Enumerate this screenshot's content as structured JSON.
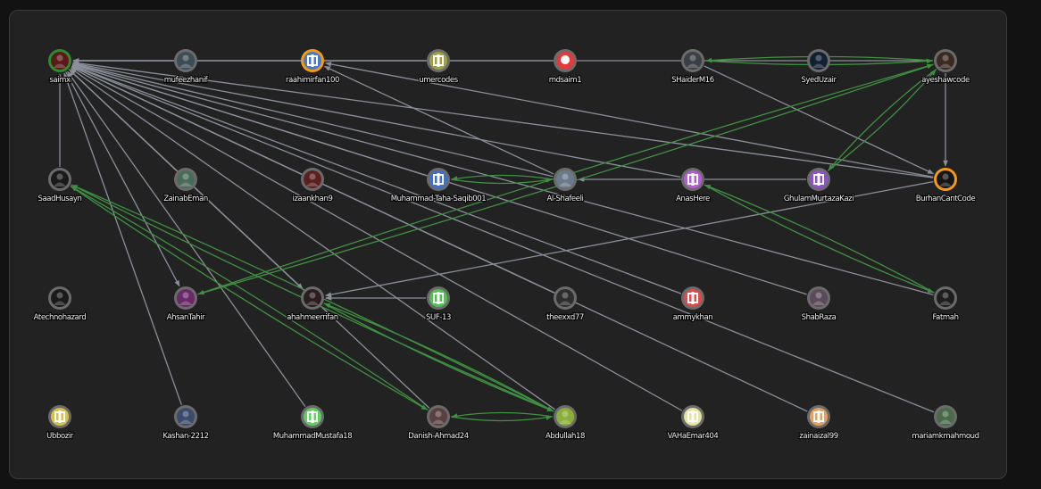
{
  "graph": {
    "colors": {
      "background": "#222222",
      "edge_default": "#8a8f9a",
      "edge_mutual": "#3f9142",
      "ring_default": "#6b6b6b",
      "ring_green": "#2e8b2e",
      "ring_orange": "#f39c12"
    },
    "nodes": [
      {
        "id": "saimx",
        "label": "saimx",
        "ring": "green",
        "icon": "avatar-photo-icon",
        "fill": "#5a1a1a"
      },
      {
        "id": "mufeezhanif",
        "label": "mufeezhanif",
        "ring": "default",
        "icon": "avatar-photo-icon",
        "fill": "#3d4d55"
      },
      {
        "id": "raahimirfan100",
        "label": "raahimirfan100",
        "ring": "orange",
        "icon": "identicon-icon",
        "fill": "#4a78c9"
      },
      {
        "id": "umercodes",
        "label": "umercodes",
        "ring": "default",
        "icon": "identicon-icon",
        "fill": "#a3a044"
      },
      {
        "id": "mdsaim1",
        "label": "mdsaim1",
        "ring": "default",
        "icon": "skull-icon",
        "fill": "#e23b3b"
      },
      {
        "id": "SHaiderM16",
        "label": "SHaiderM16",
        "ring": "default",
        "icon": "avatar-photo-icon",
        "fill": "#3a3f46"
      },
      {
        "id": "SyedUzair",
        "label": "SyedUzair",
        "ring": "default",
        "icon": "avatar-photo-icon",
        "fill": "#122033"
      },
      {
        "id": "ayeshawcode",
        "label": "ayeshawcode",
        "ring": "default",
        "icon": "avatar-photo-icon",
        "fill": "#3b2a22"
      },
      {
        "id": "SaadHusayn",
        "label": "SaadHusayn",
        "ring": "default",
        "icon": "avatar-photo-icon",
        "fill": "#1a1a1a"
      },
      {
        "id": "ZainabEman",
        "label": "ZainabEman",
        "ring": "default",
        "icon": "avatar-photo-icon",
        "fill": "#4a6a5a"
      },
      {
        "id": "izaankhan9",
        "label": "izaankhan9",
        "ring": "default",
        "icon": "avatar-photo-icon",
        "fill": "#5a2020"
      },
      {
        "id": "MuhammadTahaSaqib001",
        "label": "Muhammad-Taha-Saqib001",
        "ring": "default",
        "icon": "identicon-icon",
        "fill": "#3f6fd1"
      },
      {
        "id": "AlShafeeli",
        "label": "Al-Shafeeli",
        "ring": "default",
        "icon": "avatar-photo-icon",
        "fill": "#6a7a8a"
      },
      {
        "id": "AnasHere",
        "label": "AnasHere",
        "ring": "default",
        "icon": "identicon-icon",
        "fill": "#b45fd0"
      },
      {
        "id": "GhulamMurtazaKazi",
        "label": "GhulamMurtazaKazi",
        "ring": "default",
        "icon": "identicon-icon",
        "fill": "#8f4fd0"
      },
      {
        "id": "BurhanCantCode",
        "label": "BurhanCantCode",
        "ring": "orange",
        "icon": "avatar-photo-icon",
        "fill": "#151515"
      },
      {
        "id": "Atechnohazard",
        "label": "Atechnohazard",
        "ring": "default",
        "icon": "avatar-photo-icon",
        "fill": "#1a1a1a"
      },
      {
        "id": "AhsanTahir",
        "label": "AhsanTahir",
        "ring": "default",
        "icon": "avatar-photo-icon",
        "fill": "#6a2a6a"
      },
      {
        "id": "ahahmeerrifan",
        "label": "ahahmeerrifan",
        "ring": "default",
        "icon": "avatar-photo-icon",
        "fill": "#2a1e1e"
      },
      {
        "id": "SUF13",
        "label": "SUF-13",
        "ring": "default",
        "icon": "identicon-icon",
        "fill": "#4fc24f"
      },
      {
        "id": "theexxd77",
        "label": "theexxd77",
        "ring": "default",
        "icon": "avatar-photo-icon",
        "fill": "#2e2e2e"
      },
      {
        "id": "ammykhan",
        "label": "ammykhan",
        "ring": "default",
        "icon": "identicon-icon",
        "fill": "#e04a4a"
      },
      {
        "id": "ShabRaza",
        "label": "ShabRaza",
        "ring": "default",
        "icon": "avatar-photo-icon",
        "fill": "#5a4a5a"
      },
      {
        "id": "Fatmah",
        "label": "Fatmah",
        "ring": "default",
        "icon": "avatar-photo-icon",
        "fill": "#1e1e1e"
      },
      {
        "id": "Ubbozir",
        "label": "Ubbozir",
        "ring": "default",
        "icon": "identicon-icon",
        "fill": "#d4c24a"
      },
      {
        "id": "Kashan2212",
        "label": "Kashan-2212",
        "ring": "default",
        "icon": "avatar-photo-icon",
        "fill": "#3a4a6a"
      },
      {
        "id": "MuhammadMustafa18",
        "label": "MuhammadMustafa18",
        "ring": "default",
        "icon": "identicon-icon",
        "fill": "#5fcf5f"
      },
      {
        "id": "DanishAhmad24",
        "label": "Danish-Ahmad24",
        "ring": "default",
        "icon": "avatar-photo-icon",
        "fill": "#5a4040"
      },
      {
        "id": "Abdullah18",
        "label": "Abdullah18",
        "ring": "default",
        "icon": "avatar-photo-icon",
        "fill": "#8ab03a"
      },
      {
        "id": "VAHaEmar404",
        "label": "VAHaEmar404",
        "ring": "default",
        "icon": "identicon-icon",
        "fill": "#e6e3a0"
      },
      {
        "id": "zainaizal99",
        "label": "zainaizal99",
        "ring": "default",
        "icon": "identicon-icon",
        "fill": "#e6a060"
      },
      {
        "id": "mariamkmahmoud",
        "label": "mariamkmahmoud",
        "ring": "default",
        "icon": "avatar-photo-icon",
        "fill": "#4a6a4a"
      }
    ],
    "edges": [
      {
        "source": "mufeezhanif",
        "target": "saimx",
        "type": "default"
      },
      {
        "source": "umercodes",
        "target": "saimx",
        "type": "default"
      },
      {
        "source": "mdsaim1",
        "target": "saimx",
        "type": "default"
      },
      {
        "source": "SaadHusayn",
        "target": "saimx",
        "type": "default"
      },
      {
        "source": "ZainabEman",
        "target": "saimx",
        "type": "default"
      },
      {
        "source": "izaankhan9",
        "target": "saimx",
        "type": "default"
      },
      {
        "source": "MuhammadTahaSaqib001",
        "target": "saimx",
        "type": "default"
      },
      {
        "source": "AlShafeeli",
        "target": "saimx",
        "type": "default"
      },
      {
        "source": "AnasHere",
        "target": "saimx",
        "type": "default"
      },
      {
        "source": "BurhanCantCode",
        "target": "saimx",
        "type": "default"
      },
      {
        "source": "ayeshawcode",
        "target": "saimx",
        "type": "default"
      },
      {
        "source": "ShabRaza",
        "target": "saimx",
        "type": "default"
      },
      {
        "source": "Fatmah",
        "target": "saimx",
        "type": "default"
      },
      {
        "source": "saimx",
        "target": "AhsanTahir",
        "type": "default"
      },
      {
        "source": "saimx",
        "target": "ahahmeerrifan",
        "type": "default"
      },
      {
        "source": "Kashan2212",
        "target": "saimx",
        "type": "default"
      },
      {
        "source": "MuhammadMustafa18",
        "target": "saimx",
        "type": "default"
      },
      {
        "source": "DanishAhmad24",
        "target": "saimx",
        "type": "default"
      },
      {
        "source": "Abdullah18",
        "target": "saimx",
        "type": "default"
      },
      {
        "source": "VAHaEmar404",
        "target": "saimx",
        "type": "default"
      },
      {
        "source": "zainaizal99",
        "target": "saimx",
        "type": "default"
      },
      {
        "source": "mariamkmahmoud",
        "target": "saimx",
        "type": "default"
      },
      {
        "source": "ammykhan",
        "target": "saimx",
        "type": "default"
      },
      {
        "source": "theexxd77",
        "target": "saimx",
        "type": "default"
      },
      {
        "source": "AlShafeeli",
        "target": "raahimirfan100",
        "type": "default"
      },
      {
        "source": "BurhanCantCode",
        "target": "raahimirfan100",
        "type": "default"
      },
      {
        "source": "SHaiderM16",
        "target": "BurhanCantCode",
        "type": "default"
      },
      {
        "source": "ayeshawcode",
        "target": "BurhanCantCode",
        "type": "default"
      },
      {
        "source": "GhulamMurtazaKazi",
        "target": "AlShafeeli",
        "type": "default"
      },
      {
        "source": "ZainabEman",
        "target": "ahahmeerrifan",
        "type": "default"
      },
      {
        "source": "SUF13",
        "target": "ahahmeerrifan",
        "type": "default"
      },
      {
        "source": "BurhanCantCode",
        "target": "ahahmeerrifan",
        "type": "default"
      },
      {
        "source": "SHaiderM16",
        "target": "ayeshawcode",
        "type": "mutual"
      },
      {
        "source": "ayeshawcode",
        "target": "SHaiderM16",
        "type": "mutual"
      },
      {
        "source": "ayeshawcode",
        "target": "GhulamMurtazaKazi",
        "type": "mutual"
      },
      {
        "source": "GhulamMurtazaKazi",
        "target": "ayeshawcode",
        "type": "mutual"
      },
      {
        "source": "ayeshawcode",
        "target": "AhsanTahir",
        "type": "mutual"
      },
      {
        "source": "AhsanTahir",
        "target": "ayeshawcode",
        "type": "mutual"
      },
      {
        "source": "MuhammadTahaSaqib001",
        "target": "AlShafeeli",
        "type": "mutual"
      },
      {
        "source": "AlShafeeli",
        "target": "MuhammadTahaSaqib001",
        "type": "mutual"
      },
      {
        "source": "AnasHere",
        "target": "Fatmah",
        "type": "mutual"
      },
      {
        "source": "Fatmah",
        "target": "AnasHere",
        "type": "mutual"
      },
      {
        "source": "SaadHusayn",
        "target": "DanishAhmad24",
        "type": "mutual"
      },
      {
        "source": "DanishAhmad24",
        "target": "SaadHusayn",
        "type": "mutual"
      },
      {
        "source": "SaadHusayn",
        "target": "Abdullah18",
        "type": "mutual"
      },
      {
        "source": "Abdullah18",
        "target": "SaadHusayn",
        "type": "mutual"
      },
      {
        "source": "DanishAhmad24",
        "target": "Abdullah18",
        "type": "mutual"
      },
      {
        "source": "Abdullah18",
        "target": "DanishAhmad24",
        "type": "mutual"
      },
      {
        "source": "ahahmeerrifan",
        "target": "Abdullah18",
        "type": "mutual"
      },
      {
        "source": "Abdullah18",
        "target": "ahahmeerrifan",
        "type": "mutual"
      }
    ]
  }
}
